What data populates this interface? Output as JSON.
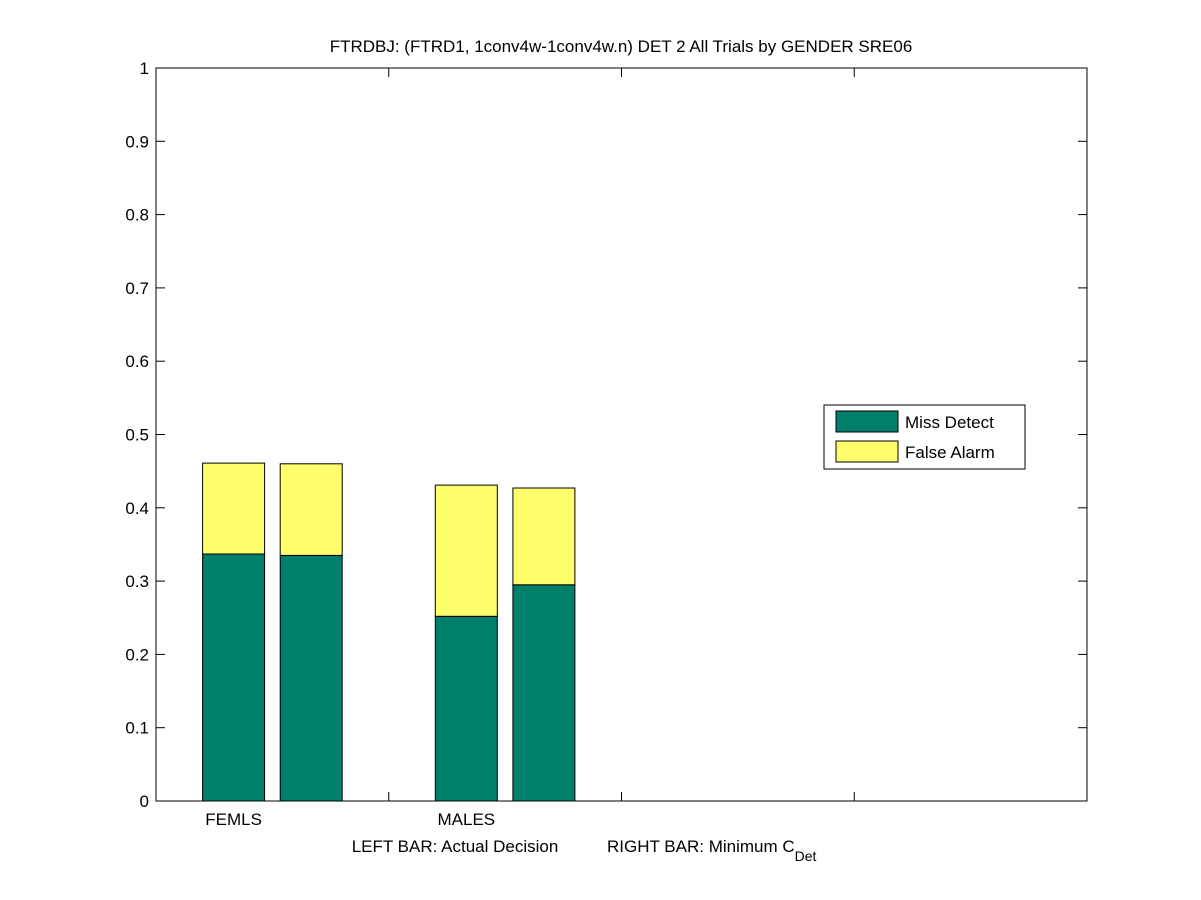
{
  "chart_data": {
    "type": "bar",
    "stacked": true,
    "title": "FTRDBJ: (FTRD1, 1conv4w-1conv4w.n) DET 2 All Trials by GENDER SRE06",
    "categories": [
      "FEMLS",
      "MALES"
    ],
    "bars": [
      {
        "category": "FEMLS",
        "Miss Detect": 0.337,
        "False Alarm": 0.124
      },
      {
        "category": "FEMLS",
        "Miss Detect": 0.335,
        "False Alarm": 0.125
      },
      {
        "category": "MALES",
        "Miss Detect": 0.252,
        "False Alarm": 0.179
      },
      {
        "category": "MALES",
        "Miss Detect": 0.295,
        "False Alarm": 0.132
      }
    ],
    "series": [
      {
        "name": "Miss Detect",
        "color": "#00806b"
      },
      {
        "name": "False Alarm",
        "color": "#ffff6b"
      }
    ],
    "xlabel": {
      "left": "LEFT BAR: Actual Decision",
      "right_prefix": "RIGHT BAR: Minimum C",
      "right_subscript": "Det"
    },
    "ylim": [
      0,
      1
    ],
    "yticks": [
      "0",
      "0.1",
      "0.2",
      "0.3",
      "0.4",
      "0.5",
      "0.6",
      "0.7",
      "0.8",
      "0.9",
      "1"
    ],
    "grid": false,
    "legend_position": "right"
  }
}
